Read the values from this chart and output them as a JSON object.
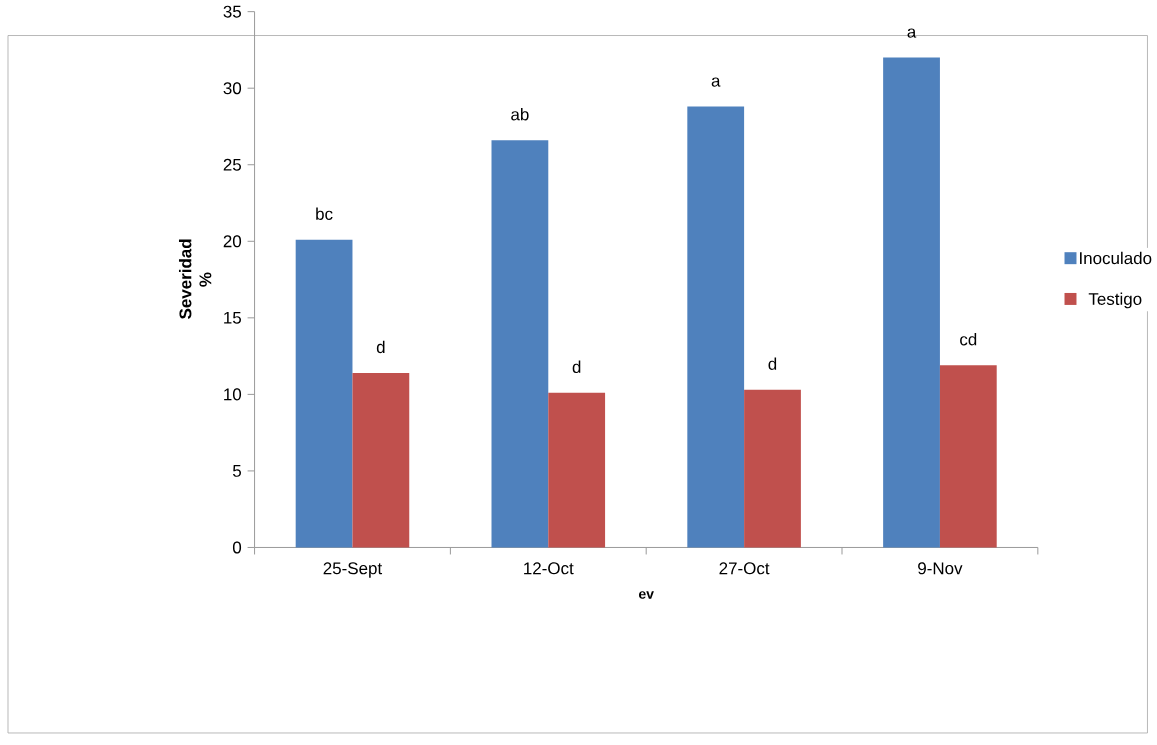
{
  "chart_data": {
    "type": "bar",
    "xlabel": "ev",
    "ylabel": "Severidad %",
    "categories": [
      "25-Sept",
      "12-Oct",
      "27-Oct",
      "9-Nov"
    ],
    "series": [
      {
        "name": "Inoculado",
        "color": "#4f81bd",
        "values": [
          20.1,
          26.6,
          28.8,
          32.0
        ],
        "value_labels": [
          "bc",
          "ab",
          "a",
          "a"
        ]
      },
      {
        "name": "Testigo",
        "color": "#c0504d",
        "values": [
          11.4,
          10.1,
          10.3,
          11.9
        ],
        "value_labels": [
          "d",
          "d",
          "d",
          "cd"
        ]
      }
    ],
    "ylim": [
      0,
      35
    ],
    "yticks": [
      0,
      5,
      10,
      15,
      20,
      25,
      30,
      35
    ],
    "legend": "right"
  }
}
